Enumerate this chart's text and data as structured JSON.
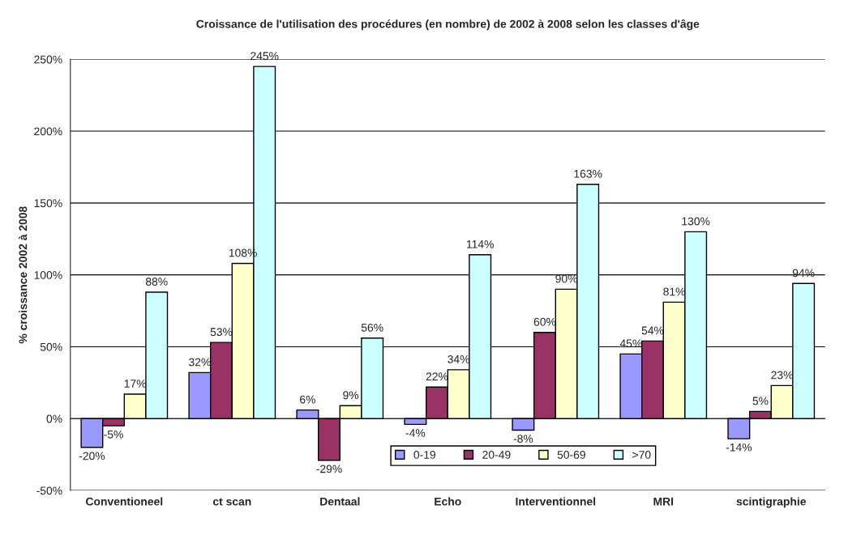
{
  "chart_data": {
    "type": "bar",
    "title": "Croissance de l'utilisation des procédures (en nombre) de 2002 à 2008 selon les classes d'âge",
    "ylabel": "% croissance 2002 à 2008",
    "categories": [
      "Conventioneel",
      "ct scan",
      "Dentaal",
      "Echo",
      "Interventionnel",
      "MRI",
      "scintigraphie"
    ],
    "series": [
      {
        "name": "0-19",
        "color": "#9999ff",
        "values": [
          -20,
          32,
          6,
          -4,
          -8,
          45,
          -14
        ],
        "value_labels": [
          "-20%",
          "32%",
          "6%",
          "-4%",
          "-8%",
          "45%",
          "-14%"
        ]
      },
      {
        "name": "20-49",
        "color": "#993366",
        "values": [
          -5,
          53,
          -29,
          22,
          60,
          54,
          5
        ],
        "value_labels": [
          "-5%",
          "53%",
          "-29%",
          "22%",
          "60%",
          "54%",
          "5%"
        ]
      },
      {
        "name": "50-69",
        "color": "#ffffcc",
        "values": [
          17,
          108,
          9,
          34,
          90,
          81,
          23
        ],
        "value_labels": [
          "17%",
          "108%",
          "9%",
          "34%",
          "90%",
          "81%",
          "23%"
        ]
      },
      {
        "name": ">70",
        "color": "#ccffff",
        "values": [
          88,
          245,
          56,
          114,
          163,
          130,
          94
        ],
        "value_labels": [
          "88%",
          "245%",
          "56%",
          "114%",
          "163%",
          "130%",
          "94%"
        ]
      }
    ],
    "ylim": [
      -50,
      250
    ],
    "yticks": [
      {
        "value": -50,
        "label": "-50%"
      },
      {
        "value": 0,
        "label": "0%"
      },
      {
        "value": 50,
        "label": "50%"
      },
      {
        "value": 100,
        "label": "100%"
      },
      {
        "value": 150,
        "label": "150%"
      },
      {
        "value": 200,
        "label": "200%"
      },
      {
        "value": 250,
        "label": "250%"
      }
    ],
    "grid": "y",
    "legend": "bottom"
  }
}
